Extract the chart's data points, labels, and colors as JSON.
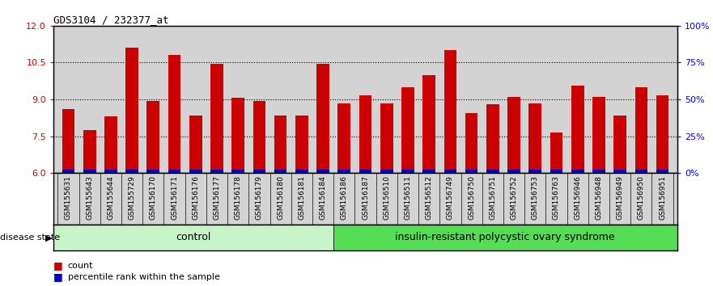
{
  "title": "GDS3104 / 232377_at",
  "samples": [
    "GSM155631",
    "GSM155643",
    "GSM155644",
    "GSM155729",
    "GSM156170",
    "GSM156171",
    "GSM156176",
    "GSM156177",
    "GSM156178",
    "GSM156179",
    "GSM156180",
    "GSM156181",
    "GSM156184",
    "GSM156186",
    "GSM156187",
    "GSM156510",
    "GSM156511",
    "GSM156512",
    "GSM156749",
    "GSM156750",
    "GSM156751",
    "GSM156752",
    "GSM156753",
    "GSM156763",
    "GSM156946",
    "GSM156948",
    "GSM156949",
    "GSM156950",
    "GSM156951"
  ],
  "red_values": [
    8.6,
    7.75,
    8.3,
    11.1,
    8.95,
    10.8,
    8.35,
    10.45,
    9.05,
    8.95,
    8.35,
    8.35,
    10.45,
    8.85,
    9.15,
    8.85,
    9.5,
    10.0,
    11.0,
    8.45,
    8.8,
    9.1,
    8.85,
    7.65,
    9.55,
    9.1,
    8.35,
    9.5,
    9.15
  ],
  "blue_values": [
    0.22,
    0.12,
    0.16,
    0.35,
    0.22,
    0.32,
    0.2,
    0.32,
    0.28,
    0.2,
    0.18,
    0.18,
    0.35,
    0.22,
    0.3,
    0.22,
    0.26,
    0.3,
    0.38,
    0.16,
    0.22,
    0.26,
    0.24,
    0.12,
    0.28,
    0.26,
    0.18,
    0.3,
    0.28
  ],
  "control_count": 13,
  "ylim_left": [
    6,
    12
  ],
  "ylim_right": [
    0,
    100
  ],
  "yticks_left": [
    6,
    7.5,
    9,
    10.5,
    12
  ],
  "yticks_right": [
    0,
    25,
    50,
    75,
    100
  ],
  "ytick_labels_right": [
    "0%",
    "25%",
    "50%",
    "75%",
    "100%"
  ],
  "bar_width": 0.6,
  "red_color": "#cc0000",
  "blue_color": "#0000cc",
  "bg_color": "#d3d3d3",
  "control_color_light": "#c8f5c8",
  "control_color_dark": "#55dd55",
  "control_label": "control",
  "disease_label": "insulin-resistant polycystic ovary syndrome",
  "disease_state_label": "disease state",
  "legend_count": "count",
  "legend_percentile": "percentile rank within the sample"
}
